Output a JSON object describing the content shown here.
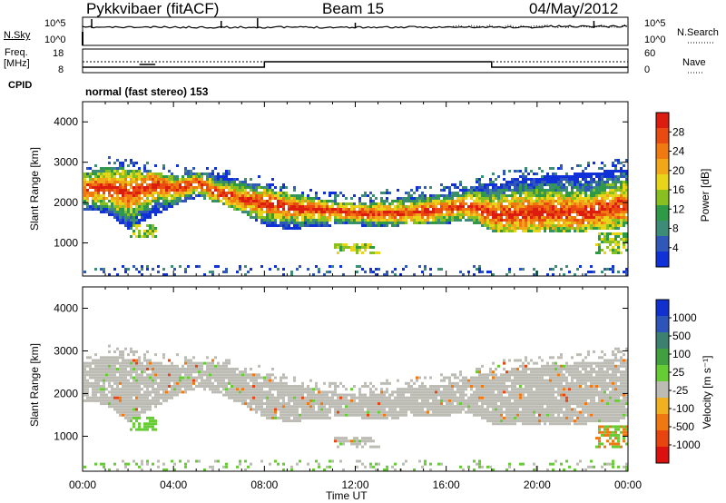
{
  "header": {
    "station": "Pykkvibaer (fitACF)",
    "beam": "Beam 15",
    "date": "04/May/2012"
  },
  "top_panels": {
    "nsky_label": "N.Sky",
    "nsky_ticks": [
      "10^5",
      "10^0"
    ],
    "nsearch_label": "N.Search",
    "nsearch_ticks": [
      "10^5",
      "10^0"
    ],
    "freq_label_1": "Freq.",
    "freq_label_2": "[MHz]",
    "freq_ticks": [
      "18",
      "8"
    ],
    "nave_label": "Nave",
    "nave_ticks": [
      "60",
      "0"
    ],
    "cpid_label": "CPID",
    "cpid_value": "normal (fast stereo) 153"
  },
  "chart_data": [
    {
      "type": "heatmap",
      "panel": "power",
      "ylabel": "Slant Range [km]",
      "yticks": [
        "4000",
        "3000",
        "2000",
        "1000"
      ],
      "ylim": [
        180,
        4500
      ],
      "colorbar_label": "Power [dB]",
      "colorbar_ticks": [
        "28",
        "24",
        "20",
        "16",
        "12",
        "8",
        "4"
      ],
      "colorbar_colors": [
        "#1030d8",
        "#2f58b8",
        "#3c8c78",
        "#2f9a46",
        "#88c020",
        "#e8d418",
        "#f0a818",
        "#f07a10",
        "#e84a10",
        "#dd1c10"
      ],
      "trace": {
        "x_hours": [
          0,
          1,
          2,
          3,
          4,
          5,
          6,
          7,
          8,
          9,
          10,
          11,
          12,
          13,
          14,
          15,
          16,
          17,
          18,
          19,
          20,
          21,
          22,
          23,
          24
        ],
        "center_km": [
          2300,
          2350,
          2200,
          2400,
          2300,
          2450,
          2200,
          2050,
          1950,
          1850,
          1800,
          1750,
          1700,
          1700,
          1700,
          1750,
          1800,
          1900,
          1650,
          1700,
          1700,
          1750,
          1700,
          1800,
          1900
        ],
        "upper_km": [
          2700,
          2850,
          2800,
          2700,
          2650,
          2700,
          2650,
          2500,
          2350,
          2200,
          2100,
          2000,
          1950,
          2000,
          2100,
          2150,
          2200,
          2350,
          2450,
          2550,
          2600,
          2650,
          2700,
          2750,
          2800
        ],
        "lower_km": [
          1800,
          1700,
          1300,
          1600,
          1900,
          2100,
          1950,
          1700,
          1400,
          1300,
          1350,
          1400,
          1400,
          1350,
          1400,
          1400,
          1450,
          1500,
          1250,
          1200,
          1200,
          1250,
          1250,
          1300,
          1350
        ]
      }
    },
    {
      "type": "heatmap",
      "panel": "velocity",
      "ylabel": "Slant Range [km]",
      "yticks": [
        "4000",
        "3000",
        "2000",
        "1000"
      ],
      "ylim": [
        180,
        4500
      ],
      "colorbar_label": "Velocity [m s⁻¹]",
      "colorbar_ticks": [
        "1000",
        "500",
        "100",
        "25",
        "-25",
        "-100",
        "-500",
        "-1000"
      ],
      "colorbar_colors": [
        "#1030d0",
        "#2d54b8",
        "#3c8070",
        "#40a040",
        "#66cc33",
        "#bcbcb4",
        "#f0b020",
        "#f07810",
        "#e84410",
        "#dd1010"
      ],
      "xlabel": "Time UT",
      "xticks": [
        "00:00",
        "04:00",
        "08:00",
        "12:00",
        "16:00",
        "20:00",
        "00:00"
      ]
    }
  ],
  "colors": {
    "scatter_gray": "#bcbcb4",
    "velocity_green": "#66cc33",
    "velocity_orange": "#f0901a"
  }
}
